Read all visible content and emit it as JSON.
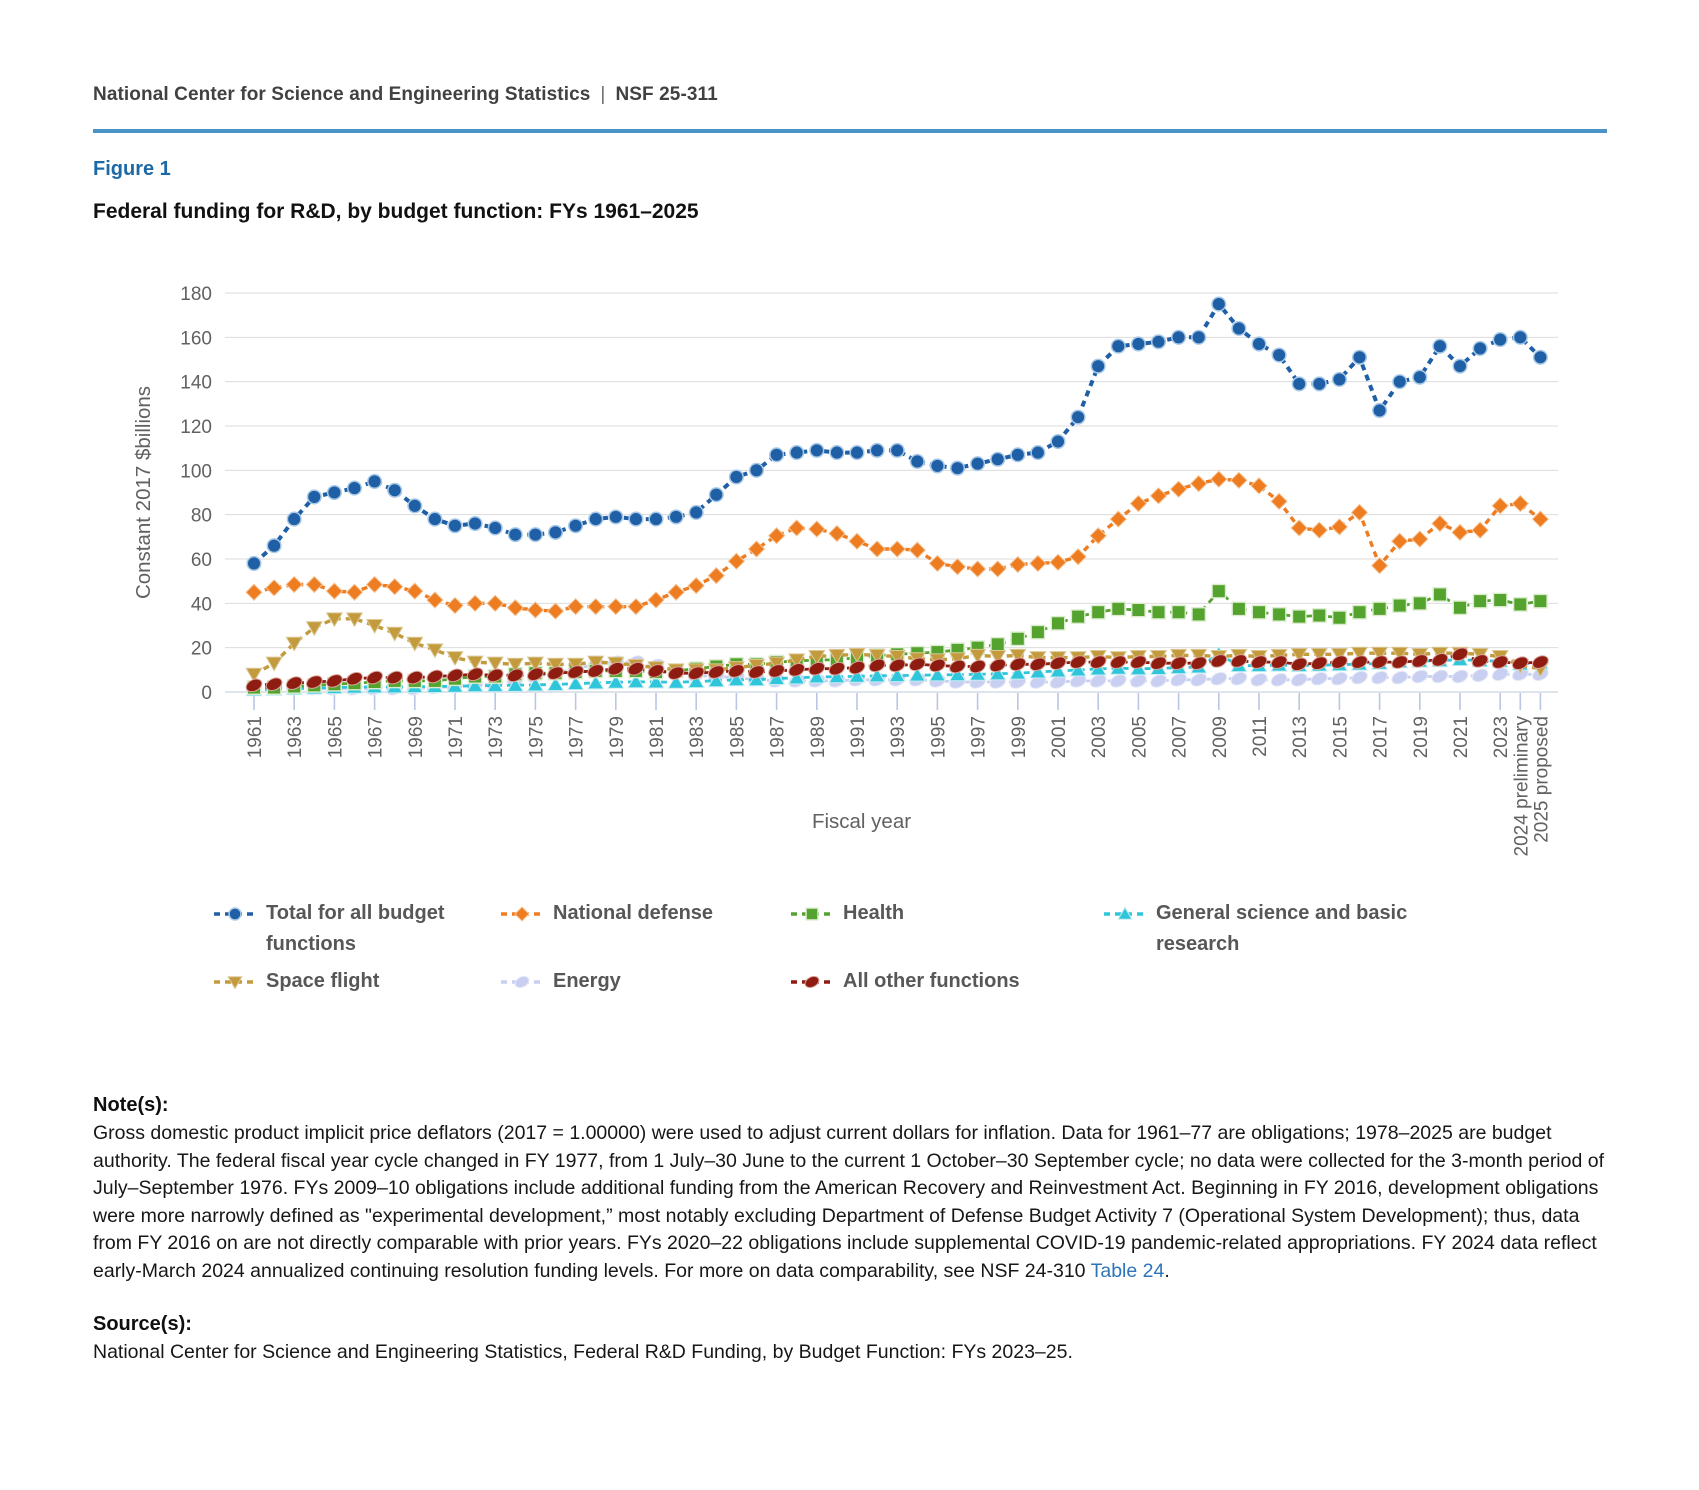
{
  "header": {
    "left": "National Center for Science and Engineering Statistics",
    "separator": "|",
    "right": "NSF 25-311"
  },
  "figure": {
    "label": "Figure 1",
    "title": "Federal funding for R&D, by budget function: FYs 1961–2025"
  },
  "chart_data": {
    "type": "line",
    "title": "Federal funding for R&D, by budget function: FYs 1961–2025",
    "xlabel": "Fiscal year",
    "ylabel": "Constant 2017 $billions",
    "ylim": [
      0,
      180
    ],
    "ytick_step": 20,
    "grid": true,
    "legend_position": "bottom",
    "years_start": 1961,
    "years_end": 2025,
    "xtick_labels": [
      "1961",
      "1963",
      "1965",
      "1967",
      "1969",
      "1971",
      "1973",
      "1975",
      "1977",
      "1979",
      "1981",
      "1983",
      "1985",
      "1987",
      "1989",
      "1991",
      "1993",
      "1995",
      "1997",
      "1999",
      "2001",
      "2003",
      "2005",
      "2007",
      "2009",
      "2011",
      "2013",
      "2015",
      "2017",
      "2019",
      "2021",
      "2023",
      "2024 preliminary",
      "2025 proposed"
    ],
    "series": [
      {
        "name": "Total for all budget functions",
        "marker": "circle",
        "color": "#1f5fa6",
        "halo": "#a9c9e6",
        "values": [
          58,
          66,
          78,
          88,
          90,
          92,
          95,
          91,
          84,
          78,
          75,
          76,
          74,
          71,
          71,
          72,
          75,
          78,
          79,
          78,
          78,
          79,
          81,
          89,
          97,
          100,
          107,
          108,
          109,
          108,
          108,
          109,
          109,
          104,
          102,
          101,
          103,
          105,
          107,
          108,
          113,
          124,
          147,
          156,
          157,
          158,
          160,
          160,
          175,
          164,
          157,
          152,
          139,
          139,
          141,
          151,
          127,
          140,
          142,
          156,
          147,
          155,
          159,
          160,
          151
        ]
      },
      {
        "name": "National defense",
        "marker": "diamond",
        "color": "#ee7d22",
        "halo": "#f6c79b",
        "values": [
          45,
          47,
          48.5,
          48.5,
          45.5,
          45,
          48.5,
          47.5,
          45.5,
          41.5,
          39,
          40,
          40,
          38,
          37,
          36.5,
          38.5,
          38.5,
          38.5,
          38.5,
          41.5,
          45,
          48,
          52.5,
          59,
          64.5,
          70.5,
          74,
          73.5,
          71.5,
          68,
          64.5,
          64.5,
          64,
          58,
          56.5,
          55.5,
          55.5,
          57.5,
          58,
          58.5,
          61,
          70.5,
          78,
          85,
          88.5,
          91.5,
          94,
          96,
          95.5,
          93,
          86,
          74,
          73,
          74.5,
          81,
          57,
          68,
          69,
          76,
          72,
          73,
          84,
          85,
          78
        ]
      },
      {
        "name": "Health",
        "marker": "square",
        "color": "#55a32f",
        "halo": "#dcedcf",
        "values": [
          2,
          2,
          2.5,
          3,
          3.5,
          4,
          4.5,
          5,
          5,
          5,
          6,
          7,
          7,
          8,
          8.5,
          8.5,
          9,
          9.5,
          9.5,
          9.5,
          9,
          9.5,
          10.5,
          11.5,
          12.5,
          12.5,
          13.5,
          14,
          14.5,
          14.5,
          15.5,
          16.5,
          17,
          17.5,
          18,
          19,
          20,
          21.5,
          24,
          27,
          31,
          34,
          36,
          37.5,
          37,
          36,
          36,
          35,
          45.5,
          37.5,
          36,
          35,
          34,
          34.5,
          33.5,
          36,
          37.5,
          39,
          40,
          44,
          38,
          41,
          41.5,
          39.5,
          41
        ]
      },
      {
        "name": "General science and basic research",
        "marker": "triangle-up",
        "color": "#2fc5da",
        "halo": "#c8eef2",
        "values": [
          1,
          1.2,
          1.5,
          1.8,
          2,
          2.2,
          2.3,
          2.3,
          2.4,
          2.5,
          2.6,
          2.8,
          2.9,
          3,
          3.2,
          3.4,
          3.8,
          4.1,
          4.4,
          4.6,
          4.5,
          4.4,
          4.7,
          5.1,
          5.5,
          5.5,
          6.1,
          6.4,
          6.8,
          6.9,
          7.1,
          7.3,
          7.4,
          7.6,
          7.7,
          7.8,
          8,
          8.2,
          8.5,
          9,
          9.5,
          9.9,
          10.4,
          10.7,
          10.5,
          10.6,
          11,
          11.3,
          17,
          11.9,
          11.9,
          12.1,
          11.9,
          12.1,
          12.3,
          12.6,
          12.9,
          13.6,
          13.9,
          14.1,
          14.6,
          14.1,
          13.9,
          12.6,
          13.1
        ]
      },
      {
        "name": "Space flight",
        "marker": "triangle-down",
        "color": "#c39b3d",
        "halo": "#dbc99a",
        "values": [
          8,
          13,
          22,
          29,
          33,
          33,
          30,
          26.5,
          22,
          19,
          15.5,
          13.5,
          13,
          12.5,
          13,
          12.5,
          12.5,
          13.5,
          13,
          12,
          11,
          10,
          10,
          10,
          11,
          12,
          13,
          14.5,
          16,
          16.5,
          17,
          16.5,
          16,
          15,
          14.5,
          15,
          16.5,
          16,
          16.5,
          15.5,
          15.5,
          15.5,
          16,
          15.5,
          16,
          16,
          16.5,
          16.5,
          16,
          16.5,
          16,
          16.5,
          17,
          17,
          17,
          17.5,
          17.5,
          17.5,
          17,
          17.5,
          17.5,
          17,
          16,
          12,
          10.5
        ]
      },
      {
        "name": "Energy",
        "marker": "ellipse",
        "color": "#c8cff0",
        "halo": "#e6e9f8",
        "values": [
          1.5,
          1.5,
          1.5,
          1.5,
          1.5,
          1.5,
          1.5,
          1.5,
          1.5,
          2,
          2.5,
          3,
          3.5,
          5,
          7,
          8.5,
          10.5,
          12.5,
          13.5,
          13.5,
          12,
          9,
          7.5,
          7,
          6.5,
          5.5,
          5,
          5,
          5,
          5,
          5.5,
          5.5,
          5.5,
          5.5,
          5,
          4.5,
          4.5,
          4.5,
          4.5,
          4.5,
          4.5,
          5,
          5,
          5,
          5,
          5,
          5.5,
          5.5,
          6,
          6,
          5.5,
          5.5,
          5.5,
          6,
          6,
          6.5,
          6.5,
          6.5,
          7,
          7,
          7,
          7.5,
          8,
          8,
          8
        ]
      },
      {
        "name": "All other functions",
        "marker": "ellipse",
        "color": "#8e1c10",
        "halo": "#d9a79d",
        "values": [
          3,
          3.5,
          4,
          4.5,
          5,
          6,
          6.5,
          6.5,
          6.5,
          7,
          7.5,
          8,
          7.5,
          7.5,
          8,
          8.5,
          9,
          9.5,
          10.5,
          10.5,
          9.5,
          8.5,
          8.5,
          9,
          9.5,
          9,
          9.5,
          10,
          10.5,
          10.5,
          11,
          12,
          12,
          12.5,
          12,
          11.5,
          11.5,
          12,
          12.5,
          12.5,
          13,
          13.5,
          13.5,
          13.5,
          13.5,
          13,
          13,
          13,
          14,
          14,
          13.5,
          13.5,
          12.5,
          13,
          13.5,
          13.5,
          13.5,
          13.5,
          14,
          14.5,
          17,
          14,
          13.5,
          13,
          13.5
        ]
      }
    ],
    "draw_order": [
      5,
      3,
      2,
      4,
      6,
      1,
      0
    ],
    "yticks": [
      0,
      20,
      40,
      60,
      80,
      100,
      120,
      140,
      160,
      180
    ]
  },
  "legend": {
    "rows": [
      [
        0,
        1,
        2,
        3
      ],
      [
        4,
        5,
        6
      ]
    ],
    "positions": [
      [
        213,
        898
      ],
      [
        500,
        898
      ],
      [
        790,
        898
      ],
      [
        1103,
        898
      ],
      [
        213,
        966
      ],
      [
        500,
        966
      ],
      [
        790,
        966
      ]
    ],
    "label_widths": [
      235,
      250,
      200,
      262,
      220,
      180,
      270
    ]
  },
  "notes": {
    "heading": "Note(s):",
    "body": "Gross domestic product implicit price deflators (2017 = 1.00000) were used to adjust current dollars for inflation. Data for 1961–77 are obligations; 1978–2025 are budget authority. The federal fiscal year cycle changed in FY 1977, from 1 July–30 June to the current 1 October–30 September cycle; no data were collected for the 3-month period of July–September 1976. FYs 2009–10 obligations include additional funding from the American Recovery and Reinvestment Act. Beginning in FY 2016, development obligations were more narrowly defined as \"experimental development,” most notably excluding Department of Defense Budget Activity 7 (Operational System Development); thus, data from FY 2016 on are not directly comparable with prior years. FYs 2020–22 obligations include supplemental COVID-19 pandemic-related appropriations. FY 2024 data reflect early-March 2024 annualized continuing resolution funding levels. For more on data comparability, see NSF 24-310 ",
    "link_text": "Table 24",
    "after_link": "."
  },
  "source": {
    "heading": "Source(s):",
    "text": "National Center for Science and Engineering Statistics, Federal R&D Funding, by Budget Function: FYs 2023–25."
  },
  "style_colors": {
    "grid": "#dbdbdb",
    "axis_line": "#c9d2e0",
    "tick": "#b9c6e4",
    "axis_text": "#616161",
    "rule_blue": "#4a93c6"
  }
}
